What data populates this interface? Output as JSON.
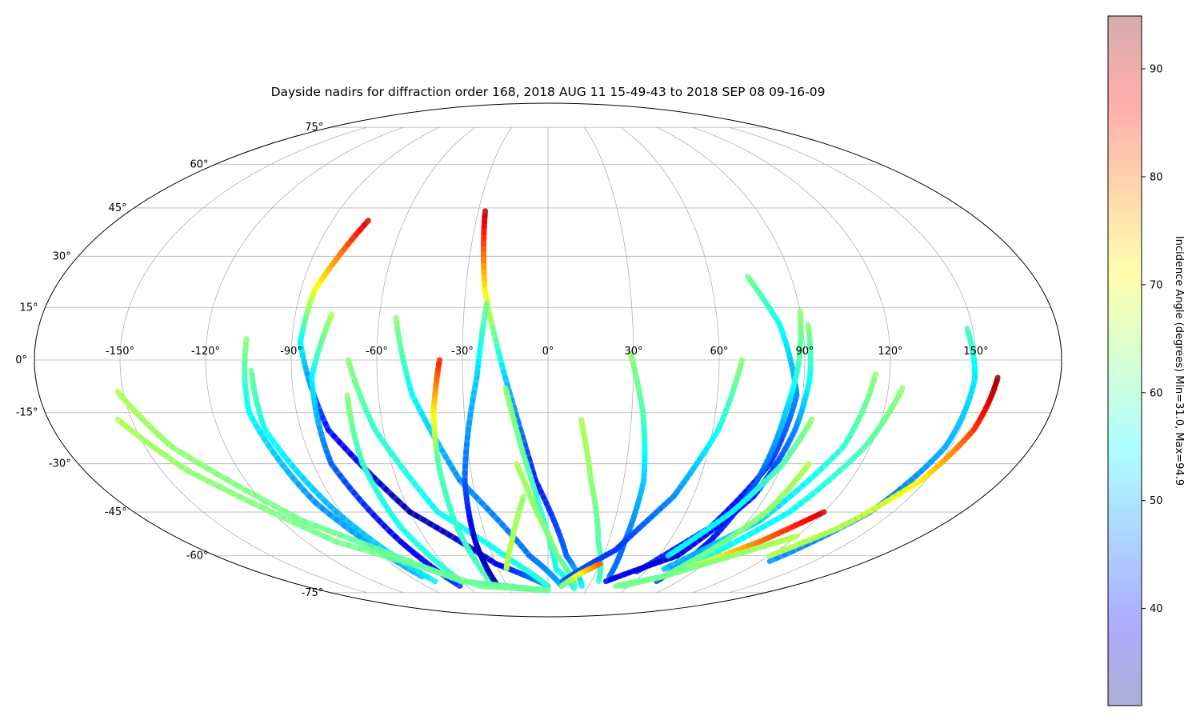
{
  "chart_data": {
    "type": "scatter",
    "projection": "mollweide",
    "title": "Dayside nadirs for diffraction order 168, 2018 AUG 11 15-49-43 to 2018 SEP 08 09-16-09",
    "grid": true,
    "longitude_ticks": [
      "-150°",
      "-120°",
      "-90°",
      "-60°",
      "-30°",
      "0°",
      "30°",
      "60°",
      "90°",
      "120°",
      "150°"
    ],
    "latitude_ticks": [
      "75°",
      "60°",
      "45°",
      "30°",
      "15°",
      "0°",
      "-15°",
      "-30°",
      "-45°",
      "-60°",
      "-75°"
    ],
    "colorbar": {
      "label": "Incidence Angle (degrees) Min=31.0, Max=94.9",
      "ticks": [
        "40",
        "50",
        "60",
        "70",
        "80",
        "90"
      ],
      "range": [
        31.0,
        94.9
      ],
      "colormap": "jet"
    },
    "tracks": [
      {
        "points": [
          [
            -75,
            41,
            90
          ],
          [
            -85,
            20,
            70
          ],
          [
            -87,
            5,
            55
          ],
          [
            -80,
            -20,
            40
          ],
          [
            -60,
            -45,
            34
          ],
          [
            -30,
            -63,
            38
          ],
          [
            0,
            -72,
            50
          ]
        ]
      },
      {
        "points": [
          [
            -27,
            44,
            92
          ],
          [
            -23,
            20,
            72
          ],
          [
            -15,
            -5,
            52
          ],
          [
            -5,
            -35,
            40
          ],
          [
            10,
            -60,
            45
          ],
          [
            25,
            -72,
            55
          ]
        ]
      },
      {
        "points": [
          [
            -77,
            13,
            66
          ],
          [
            -83,
            -5,
            55
          ],
          [
            -83,
            -30,
            45
          ],
          [
            -73,
            -55,
            38
          ],
          [
            -65,
            -72,
            42
          ]
        ]
      },
      {
        "points": [
          [
            -106,
            6,
            64
          ],
          [
            -107,
            -15,
            55
          ],
          [
            -98,
            -42,
            48
          ],
          [
            -82,
            -68,
            50
          ]
        ]
      },
      {
        "points": [
          [
            -104,
            -3,
            62
          ],
          [
            -103,
            -20,
            56
          ],
          [
            -92,
            -45,
            50
          ],
          [
            -78,
            -70,
            54
          ]
        ]
      },
      {
        "points": [
          [
            -70,
            0,
            64
          ],
          [
            -63,
            -20,
            58
          ],
          [
            -48,
            -45,
            55
          ],
          [
            -20,
            -62,
            56
          ],
          [
            0,
            -72,
            58
          ]
        ]
      },
      {
        "points": [
          [
            -71,
            -10,
            64
          ],
          [
            -71,
            -30,
            58
          ],
          [
            -68,
            -50,
            56
          ],
          [
            -60,
            -70,
            58
          ]
        ]
      },
      {
        "points": [
          [
            -54,
            12,
            64
          ],
          [
            -48,
            -10,
            55
          ],
          [
            -35,
            -35,
            48
          ],
          [
            -10,
            -60,
            46
          ],
          [
            10,
            -72,
            50
          ]
        ]
      },
      {
        "points": [
          [
            -38,
            0,
            86
          ],
          [
            -41,
            -15,
            72
          ],
          [
            -42,
            -30,
            60
          ],
          [
            -42,
            -50,
            58
          ],
          [
            -40,
            -70,
            60
          ]
        ]
      },
      {
        "points": [
          [
            -22,
            16,
            62
          ],
          [
            -25,
            -5,
            52
          ],
          [
            -33,
            -35,
            45
          ],
          [
            -36,
            -55,
            36
          ],
          [
            -37,
            -72,
            34
          ]
        ]
      },
      {
        "points": [
          [
            -152,
            -9,
            66
          ],
          [
            -140,
            -25,
            64
          ],
          [
            -110,
            -48,
            62
          ],
          [
            -60,
            -70,
            60
          ],
          [
            0,
            -74,
            60
          ]
        ]
      },
      {
        "points": [
          [
            -155,
            -17,
            66
          ],
          [
            -140,
            -32,
            64
          ],
          [
            -105,
            -55,
            62
          ],
          [
            -50,
            -72,
            62
          ],
          [
            0,
            -74,
            62
          ]
        ]
      },
      {
        "points": [
          [
            -15,
            -8,
            64
          ],
          [
            -10,
            -25,
            62
          ],
          [
            -3,
            -45,
            58
          ],
          [
            5,
            -65,
            56
          ],
          [
            20,
            -73,
            56
          ]
        ]
      },
      {
        "points": [
          [
            12,
            -17,
            66
          ],
          [
            17,
            -35,
            64
          ],
          [
            25,
            -55,
            60
          ],
          [
            35,
            -70,
            58
          ]
        ]
      },
      {
        "points": [
          [
            -12,
            -30,
            66
          ],
          [
            -5,
            -45,
            64
          ],
          [
            5,
            -60,
            62
          ],
          [
            20,
            -72,
            60
          ]
        ]
      },
      {
        "points": [
          [
            -10,
            -40,
            64
          ],
          [
            -18,
            -55,
            66
          ],
          [
            -25,
            -65,
            66
          ]
        ]
      },
      {
        "points": [
          [
            29,
            2,
            64
          ],
          [
            34,
            -15,
            60
          ],
          [
            38,
            -35,
            52
          ],
          [
            38,
            -55,
            46
          ],
          [
            40,
            -68,
            46
          ]
        ]
      },
      {
        "points": [
          [
            68,
            0,
            64
          ],
          [
            62,
            -20,
            56
          ],
          [
            52,
            -40,
            48
          ],
          [
            35,
            -58,
            42
          ],
          [
            10,
            -70,
            44
          ]
        ]
      },
      {
        "points": [
          [
            74,
            24,
            62
          ],
          [
            82,
            10,
            56
          ],
          [
            88,
            -10,
            48
          ],
          [
            85,
            -30,
            42
          ],
          [
            75,
            -50,
            38
          ],
          [
            55,
            -66,
            42
          ]
        ]
      },
      {
        "points": [
          [
            90,
            14,
            64
          ],
          [
            88,
            0,
            60
          ],
          [
            85,
            -15,
            52
          ],
          [
            83,
            -35,
            45
          ],
          [
            80,
            -55,
            40
          ],
          [
            75,
            -70,
            44
          ]
        ]
      },
      {
        "points": [
          [
            92,
            10,
            64
          ],
          [
            92,
            -5,
            56
          ],
          [
            90,
            -20,
            48
          ],
          [
            85,
            -40,
            40
          ],
          [
            70,
            -60,
            36
          ],
          [
            40,
            -70,
            38
          ]
        ]
      },
      {
        "points": [
          [
            115,
            -4,
            64
          ],
          [
            110,
            -25,
            58
          ],
          [
            95,
            -48,
            52
          ],
          [
            70,
            -65,
            50
          ]
        ]
      },
      {
        "points": [
          [
            125,
            -8,
            64
          ],
          [
            118,
            -25,
            60
          ],
          [
            105,
            -45,
            55
          ],
          [
            85,
            -62,
            55
          ]
        ]
      },
      {
        "points": [
          [
            95,
            -17,
            64
          ],
          [
            90,
            -30,
            60
          ],
          [
            80,
            -45,
            55
          ],
          [
            65,
            -60,
            55
          ]
        ]
      },
      {
        "points": [
          [
            148,
            9,
            60
          ],
          [
            150,
            -5,
            54
          ],
          [
            148,
            -25,
            50
          ],
          [
            140,
            -45,
            46
          ],
          [
            125,
            -62,
            48
          ]
        ]
      },
      {
        "points": [
          [
            158,
            -5,
            94
          ],
          [
            155,
            -20,
            84
          ],
          [
            148,
            -35,
            72
          ],
          [
            135,
            -50,
            66
          ],
          [
            120,
            -60,
            66
          ]
        ]
      },
      {
        "points": [
          [
            120,
            -45,
            90
          ],
          [
            105,
            -55,
            80
          ],
          [
            90,
            -62,
            70
          ],
          [
            75,
            -68,
            66
          ],
          [
            55,
            -72,
            62
          ]
        ]
      },
      {
        "points": [
          [
            30,
            -63,
            82
          ],
          [
            20,
            -67,
            72
          ],
          [
            10,
            -72,
            62
          ]
        ]
      },
      {
        "points": [
          [
            100,
            -30,
            66
          ],
          [
            95,
            -45,
            64
          ],
          [
            85,
            -58,
            62
          ],
          [
            75,
            -68,
            62
          ]
        ]
      },
      {
        "points": [
          [
            120,
            -53,
            66
          ],
          [
            100,
            -60,
            64
          ],
          [
            75,
            -68,
            62
          ],
          [
            50,
            -72,
            62
          ]
        ]
      }
    ]
  }
}
